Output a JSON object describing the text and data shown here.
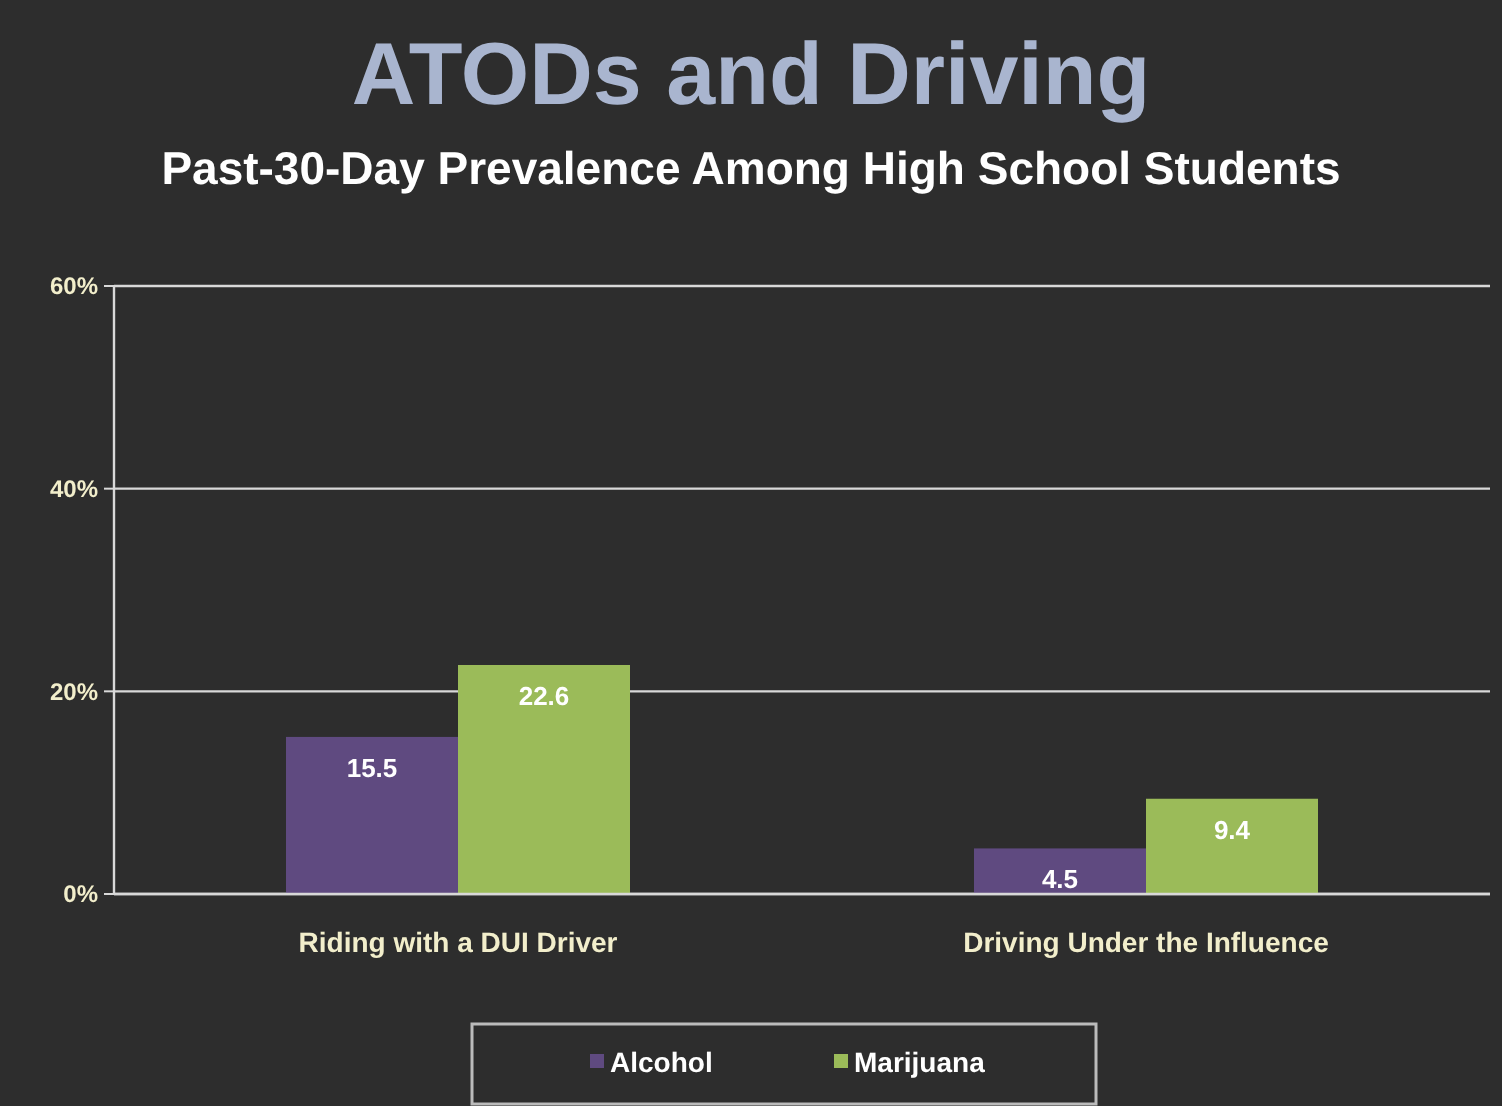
{
  "chart_data": {
    "type": "bar",
    "title": "ATODs and Driving",
    "subtitle": "Past-30-Day Prevalence Among High School Students",
    "categories": [
      "Riding with a DUI Driver",
      "Driving Under the Influence"
    ],
    "series": [
      {
        "name": "Alcohol",
        "color": "#5f4a80",
        "values": [
          15.5,
          4.5
        ]
      },
      {
        "name": "Marijuana",
        "color": "#9bbb59",
        "values": [
          22.6,
          9.4
        ]
      }
    ],
    "ylim": [
      0,
      60
    ],
    "yticks": [
      {
        "value": 0,
        "label": "0%"
      },
      {
        "value": 20,
        "label": "20%"
      },
      {
        "value": 40,
        "label": "40%"
      },
      {
        "value": 60,
        "label": "60%"
      }
    ],
    "grid": "y",
    "legend": "bottom",
    "data_labels": true
  }
}
